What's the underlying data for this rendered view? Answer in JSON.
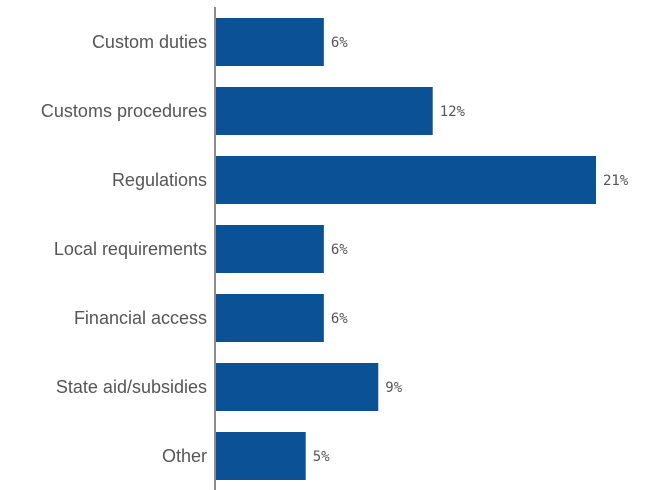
{
  "chart_data": {
    "type": "bar",
    "orientation": "horizontal",
    "categories": [
      "Custom duties",
      "Customs procedures",
      "Regulations",
      "Local requirements",
      "Financial access",
      "State aid/subsidies",
      "Other"
    ],
    "values": [
      6,
      12,
      21,
      6,
      6,
      9,
      5
    ],
    "value_labels": [
      "6%",
      "12%",
      "21%",
      "6%",
      "6%",
      "9%",
      "5%"
    ],
    "unit": "%",
    "title": "",
    "xlabel": "",
    "ylabel": "",
    "xlim": [
      0,
      21
    ],
    "grid": false,
    "legend": "none",
    "colors": {
      "bar": "#0a5196",
      "axis": "#8c8c8c",
      "text": "#555555"
    }
  }
}
